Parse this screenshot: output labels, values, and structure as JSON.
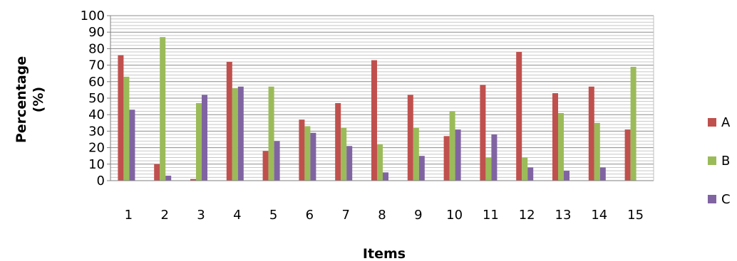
{
  "chart_data": {
    "type": "bar",
    "title": "",
    "xlabel": "Items",
    "ylabel_line1": "Percentage",
    "ylabel_line2": "(%)",
    "categories": [
      "1",
      "2",
      "3",
      "4",
      "5",
      "6",
      "7",
      "8",
      "9",
      "10",
      "11",
      "12",
      "13",
      "14",
      "15"
    ],
    "ylim": [
      0,
      100
    ],
    "yticks": [
      0,
      10,
      20,
      30,
      40,
      50,
      60,
      70,
      80,
      90,
      100
    ],
    "grid": true,
    "legend_position": "right",
    "series": [
      {
        "name": "A",
        "color": "#c0504d",
        "values": [
          76,
          10,
          1,
          72,
          18,
          37,
          47,
          73,
          52,
          27,
          58,
          78,
          53,
          57,
          31
        ]
      },
      {
        "name": "B",
        "color": "#9bbb59",
        "values": [
          63,
          87,
          47,
          56,
          57,
          33,
          32,
          22,
          32,
          42,
          14,
          14,
          41,
          35,
          69
        ]
      },
      {
        "name": "C",
        "color": "#8064a2",
        "values": [
          43,
          3,
          52,
          57,
          24,
          29,
          21,
          5,
          15,
          31,
          28,
          8,
          6,
          8,
          0
        ]
      }
    ]
  }
}
